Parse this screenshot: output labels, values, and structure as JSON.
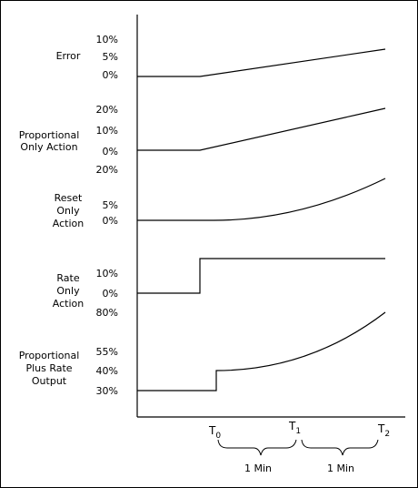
{
  "rows": [
    {
      "name": "error",
      "label_lines": [
        "Error"
      ],
      "ticks": [
        "10%",
        "5%",
        "0%"
      ]
    },
    {
      "name": "proportional-only-action",
      "label_lines": [
        "Proportional",
        "Only Action"
      ],
      "ticks": [
        "20%",
        "10%",
        "0%"
      ]
    },
    {
      "name": "reset-only-action",
      "label_lines": [
        "Reset",
        "Only",
        "Action"
      ],
      "ticks": [
        "20%",
        "5%",
        "0%"
      ]
    },
    {
      "name": "rate-only-action",
      "label_lines": [
        "Rate",
        "Only",
        "Action"
      ],
      "ticks": [
        "10%",
        "0%"
      ]
    },
    {
      "name": "proportional-plus-rate-output",
      "label_lines": [
        "Proportional",
        "Plus Rate",
        "Output"
      ],
      "ticks": [
        "80%",
        "55%",
        "40%",
        "30%"
      ]
    }
  ],
  "time_axis": {
    "markers": [
      {
        "letter": "T",
        "sub": "0"
      },
      {
        "letter": "T",
        "sub": "1"
      },
      {
        "letter": "T",
        "sub": "2"
      }
    ],
    "intervals": [
      "1 Min",
      "1 Min"
    ]
  }
}
